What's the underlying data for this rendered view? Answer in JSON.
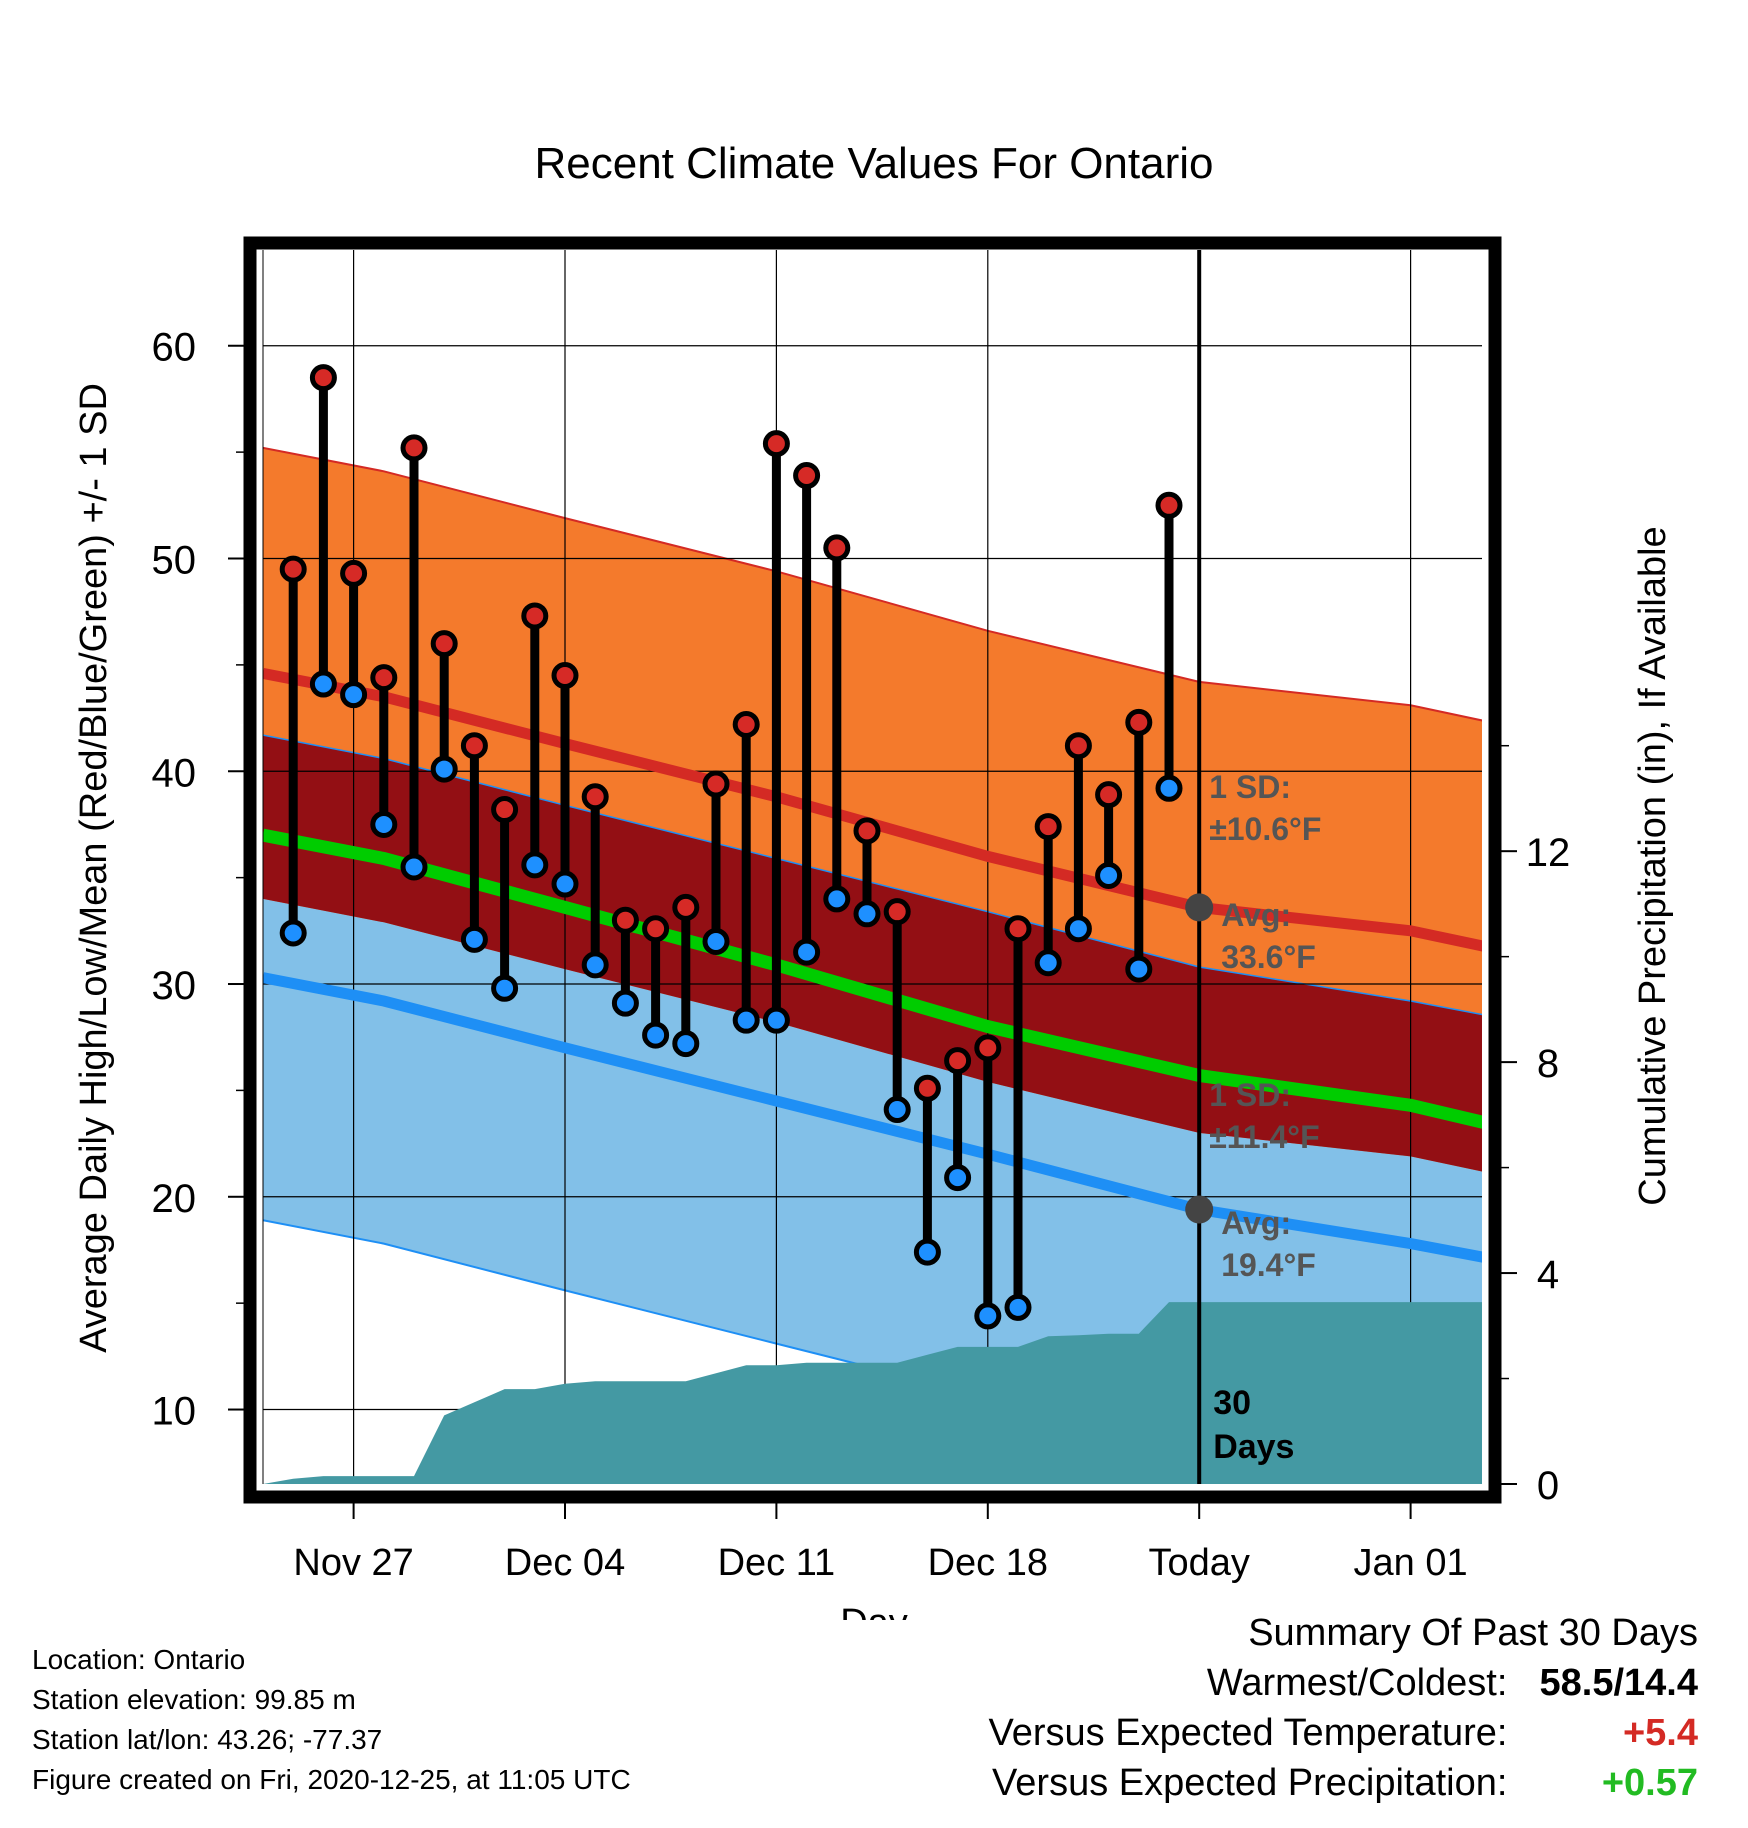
{
  "chart_data": {
    "type": "line",
    "title": "Recent Climate Values For Ontario",
    "xlabel": "Day",
    "ylabel": "Average Daily High/Low/Mean (Red/Blue/Green) +/- 1 SD",
    "y2label": "Cumulative Precipitation (in), If Available",
    "xlim": [
      "2020-11-24",
      "2021-01-04"
    ],
    "ylim": [
      6.5,
      64.5
    ],
    "y2lim": [
      0,
      23.4
    ],
    "x_ticks": [
      "2020-11-27",
      "2020-12-04",
      "2020-12-11",
      "2020-12-18",
      "2020-12-25",
      "2021-01-01"
    ],
    "x_tick_labels": [
      "Nov 27",
      "Dec 04",
      "Dec 11",
      "Dec 18",
      "Today",
      "Jan 01"
    ],
    "y_ticks": [
      10,
      20,
      30,
      40,
      50,
      60
    ],
    "y2_ticks": [
      0,
      4,
      8,
      12
    ],
    "today": "2020-12-25",
    "grid": true,
    "colors": {
      "high_band": "#f47a2c",
      "high_line": "#d42a24",
      "mean_band": "#930f14",
      "mean_line": "#00cc00",
      "low_band": "#82c0e8",
      "low_line": "#1e8ff5",
      "precip": "#4499a3",
      "high_marker": "#d62a26",
      "low_marker": "#1e90ff"
    },
    "normals": {
      "x": [
        "2020-11-24",
        "2020-11-28",
        "2020-12-04",
        "2020-12-11",
        "2020-12-18",
        "2020-12-25",
        "2021-01-01",
        "2021-01-04"
      ],
      "high_avg": [
        44.6,
        43.5,
        41.3,
        38.8,
        36.0,
        33.6,
        32.5,
        31.6
      ],
      "high_sd": 10.6,
      "low_avg": [
        30.3,
        29.2,
        27.0,
        24.5,
        22.0,
        19.4,
        17.8,
        17.0
      ],
      "low_sd": 11.4,
      "mean_avg": [
        37.0,
        35.9,
        33.6,
        30.9,
        28.0,
        25.7,
        24.3,
        23.3
      ]
    },
    "observed": {
      "x": [
        "2020-11-25",
        "2020-11-26",
        "2020-11-27",
        "2020-11-28",
        "2020-11-29",
        "2020-11-30",
        "2020-12-01",
        "2020-12-02",
        "2020-12-03",
        "2020-12-04",
        "2020-12-05",
        "2020-12-06",
        "2020-12-07",
        "2020-12-08",
        "2020-12-09",
        "2020-12-10",
        "2020-12-11",
        "2020-12-12",
        "2020-12-13",
        "2020-12-14",
        "2020-12-15",
        "2020-12-16",
        "2020-12-17",
        "2020-12-18",
        "2020-12-19",
        "2020-12-20",
        "2020-12-21",
        "2020-12-22",
        "2020-12-23",
        "2020-12-24"
      ],
      "high": [
        49.5,
        58.5,
        49.3,
        44.4,
        55.2,
        46.0,
        41.2,
        38.2,
        47.3,
        44.5,
        38.8,
        33.0,
        32.6,
        33.6,
        39.4,
        42.2,
        55.4,
        53.9,
        50.5,
        37.2,
        33.4,
        25.1,
        26.4,
        27.0,
        32.6,
        37.4,
        41.2,
        38.9,
        42.3,
        52.5
      ],
      "low": [
        32.4,
        44.1,
        43.6,
        37.5,
        35.5,
        40.1,
        32.1,
        29.8,
        35.6,
        34.7,
        30.9,
        29.1,
        27.6,
        27.2,
        32.0,
        28.3,
        28.3,
        31.5,
        34.0,
        33.3,
        24.1,
        17.4,
        20.9,
        14.4,
        14.8,
        31.0,
        32.6,
        35.1,
        30.7,
        39.2
      ]
    },
    "precip": {
      "x": [
        "2020-11-24",
        "2020-11-25",
        "2020-11-26",
        "2020-11-27",
        "2020-11-28",
        "2020-11-29",
        "2020-11-30",
        "2020-12-01",
        "2020-12-02",
        "2020-12-03",
        "2020-12-04",
        "2020-12-05",
        "2020-12-06",
        "2020-12-07",
        "2020-12-08",
        "2020-12-09",
        "2020-12-10",
        "2020-12-11",
        "2020-12-12",
        "2020-12-13",
        "2020-12-14",
        "2020-12-15",
        "2020-12-16",
        "2020-12-17",
        "2020-12-18",
        "2020-12-19",
        "2020-12-20",
        "2020-12-21",
        "2020-12-22",
        "2020-12-23",
        "2020-12-24",
        "2021-01-04"
      ],
      "values": [
        0.0,
        0.1,
        0.15,
        0.15,
        0.15,
        0.15,
        1.3,
        1.55,
        1.8,
        1.8,
        1.9,
        1.95,
        1.95,
        1.95,
        1.95,
        2.1,
        2.25,
        2.25,
        2.3,
        2.3,
        2.3,
        2.3,
        2.45,
        2.6,
        2.6,
        2.6,
        2.8,
        2.82,
        2.85,
        2.85,
        3.45,
        3.45
      ]
    },
    "annotations": {
      "high_sd_label": [
        "1 SD:",
        "±10.6°F"
      ],
      "high_avg_label": [
        "Avg:",
        "33.6°F"
      ],
      "low_sd_label": [
        "1 SD:",
        "±11.4°F"
      ],
      "low_avg_label": [
        "Avg:",
        "19.4°F"
      ],
      "days_label": [
        "30",
        "Days"
      ],
      "annotation_color": "#555555"
    }
  },
  "footer": {
    "location": "Location: Ontario",
    "elevation": "Station elevation: 99.85 m",
    "latlon": "Station lat/lon: 43.26; -77.37",
    "created": "Figure created on Fri, 2020-12-25, at 11:05 UTC"
  },
  "summary": {
    "heading": "Summary Of Past 30 Days",
    "warmest_label": "Warmest/Coldest:",
    "warmest_value": "58.5/14.4",
    "temp_label": "Versus Expected Temperature:",
    "temp_value": "+5.4",
    "temp_color": "#d42a24",
    "precip_label": "Versus Expected Precipitation:",
    "precip_value": "+0.57",
    "precip_color": "#22bb22"
  }
}
